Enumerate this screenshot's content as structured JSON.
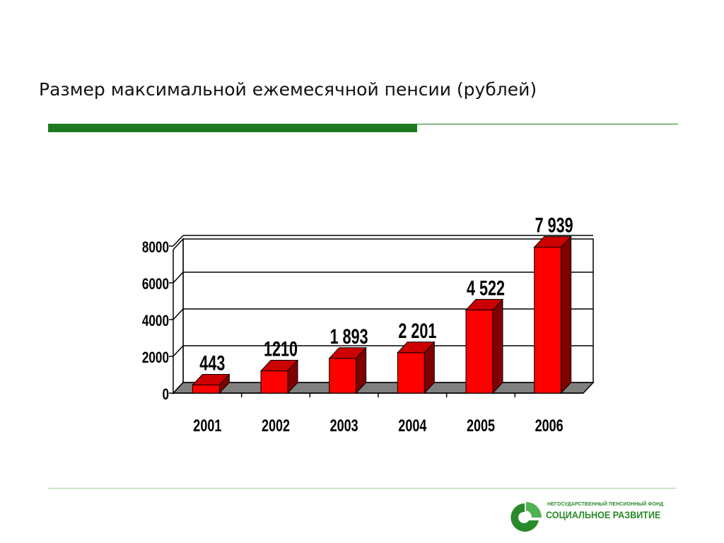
{
  "slide": {
    "title": "Размер максимальной ежемесячной пенсии (рублей)"
  },
  "logo": {
    "line1": "НЕГОСУДАРСТВЕННЫЙ ПЕНСИОННЫЙ ФОНД",
    "line2": "СОЦИАЛЬНОЕ РАЗВИТИЕ",
    "color": "#2a8a2a"
  },
  "chart_data": {
    "type": "bar",
    "style": "3d-column",
    "categories": [
      "2001",
      "2002",
      "2003",
      "2004",
      "2005",
      "2006"
    ],
    "values": [
      443,
      1210,
      1893,
      2201,
      4522,
      7939
    ],
    "data_labels": [
      "443",
      "1210",
      "1 893",
      "2 201",
      "4 522",
      "7 939"
    ],
    "yticks": [
      "0",
      "2000",
      "4000",
      "6000",
      "8000"
    ],
    "ylim": [
      0,
      8000
    ],
    "grid": true,
    "legend": "none",
    "bar_color": "#ff0000",
    "bar_top_color": "#cc0000",
    "bar_side_color": "#800000",
    "floor_color": "#808080"
  }
}
